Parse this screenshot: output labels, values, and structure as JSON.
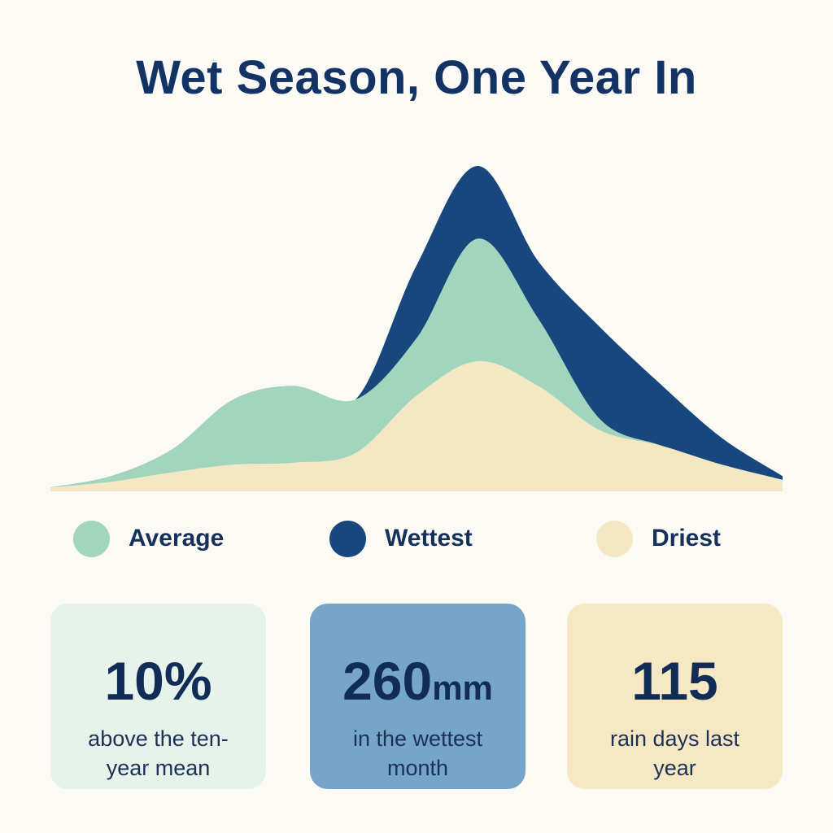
{
  "title": "Wet Season, One Year In",
  "colors": {
    "background": "#fbfaf5",
    "title": "#123363",
    "average": "#a2d5bd",
    "wettest": "#18477d",
    "driest": "#f4e8c4",
    "card_average_bg": "#e6f3ea",
    "card_wettest_bg": "#75a5c9",
    "card_driest_bg": "#f6e8c3"
  },
  "legend": [
    {
      "label": "Average",
      "color": "#a2d5bd"
    },
    {
      "label": "Wettest",
      "color": "#18477d"
    },
    {
      "label": "Driest",
      "color": "#f4e8c4"
    }
  ],
  "cards": [
    {
      "value": "10%",
      "unit": "",
      "caption": "above the ten-year mean"
    },
    {
      "value": "260",
      "unit": "mm",
      "caption": "in the wettest month"
    },
    {
      "value": "115",
      "unit": "",
      "caption": "rain days last year"
    }
  ],
  "chart_data": {
    "type": "area",
    "title": "Wet Season, One Year In",
    "xlabel": "",
    "ylabel": "",
    "grid": false,
    "legend_position": "bottom",
    "x": [
      0,
      1,
      2,
      3,
      4,
      5,
      6,
      7,
      8,
      9,
      10,
      11,
      12
    ],
    "series": [
      {
        "name": "Wettest",
        "color": "#18477d",
        "values": [
          2,
          8,
          22,
          48,
          55,
          48,
          118,
          170,
          120,
          86,
          56,
          28,
          8
        ]
      },
      {
        "name": "Average",
        "color": "#a2d5bd",
        "values": [
          2,
          8,
          22,
          48,
          55,
          48,
          80,
          132,
          90,
          38,
          24,
          14,
          6
        ]
      },
      {
        "name": "Driest",
        "color": "#f4e8c4",
        "values": [
          2,
          5,
          10,
          14,
          15,
          20,
          50,
          68,
          55,
          32,
          24,
          14,
          6
        ]
      }
    ]
  }
}
